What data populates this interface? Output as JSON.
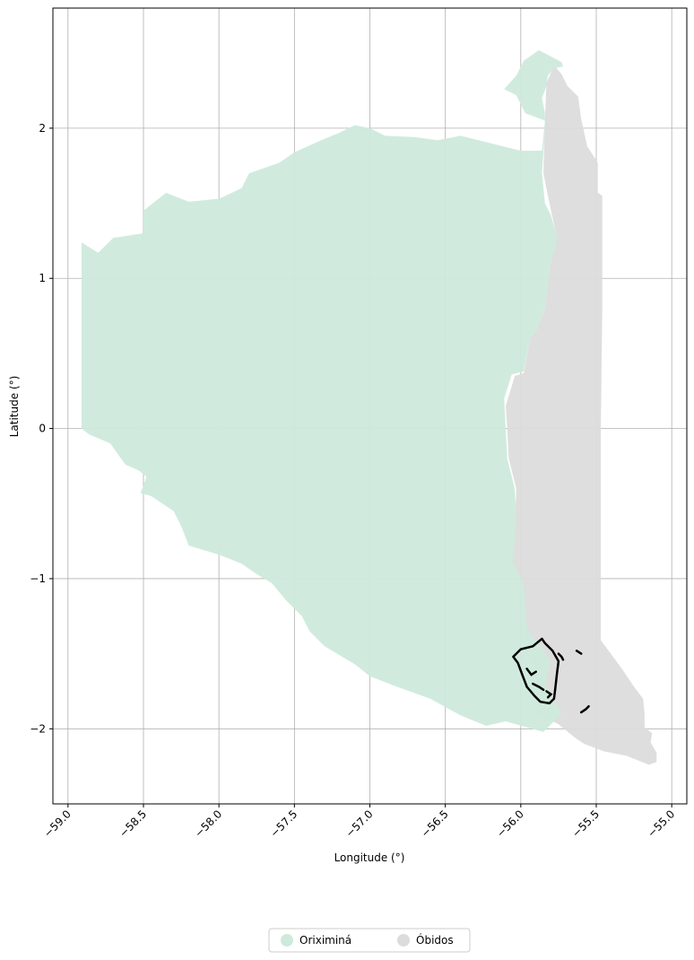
{
  "chart_data": {
    "type": "map",
    "xlabel": "Longitude (°)",
    "ylabel": "Latitude (°)",
    "xlim": [
      -59.1,
      -54.9
    ],
    "ylim": [
      -2.5,
      2.8
    ],
    "grid": true,
    "x_ticks": [
      {
        "value": -59.0,
        "label": "−59.0"
      },
      {
        "value": -58.5,
        "label": "−58.5"
      },
      {
        "value": -58.0,
        "label": "−58.0"
      },
      {
        "value": -57.5,
        "label": "−57.5"
      },
      {
        "value": -57.0,
        "label": "−57.0"
      },
      {
        "value": -56.5,
        "label": "−56.5"
      },
      {
        "value": -56.0,
        "label": "−56.0"
      },
      {
        "value": -55.5,
        "label": "−55.5"
      },
      {
        "value": -55.0,
        "label": "−55.0"
      }
    ],
    "y_ticks": [
      {
        "value": 2,
        "label": "2"
      },
      {
        "value": 1,
        "label": "1"
      },
      {
        "value": 0,
        "label": "0"
      },
      {
        "value": -1,
        "label": "−1"
      },
      {
        "value": -2,
        "label": "−2"
      }
    ],
    "legend_position": "bottom-center",
    "legend": [
      {
        "label": "Oriximiná",
        "color": "#cdeadc"
      },
      {
        "label": "Óbidos",
        "color": "#dcdcdc"
      }
    ],
    "regions": [
      {
        "name": "Óbidos",
        "color": "#dcdcdc",
        "coords": [
          [
            -55.73,
            2.36
          ],
          [
            -55.69,
            2.28
          ],
          [
            -55.62,
            2.21
          ],
          [
            -55.6,
            2.06
          ],
          [
            -55.56,
            1.88
          ],
          [
            -55.49,
            1.77
          ],
          [
            -55.49,
            1.57
          ],
          [
            -55.46,
            1.55
          ],
          [
            -55.46,
            0.8
          ],
          [
            -55.47,
            0.0
          ],
          [
            -55.47,
            -1.41
          ],
          [
            -55.33,
            -1.6
          ],
          [
            -55.25,
            -1.72
          ],
          [
            -55.19,
            -1.8
          ],
          [
            -55.18,
            -1.9
          ],
          [
            -55.18,
            -1.99
          ],
          [
            -55.13,
            -2.03
          ],
          [
            -55.14,
            -2.09
          ],
          [
            -55.1,
            -2.16
          ],
          [
            -55.1,
            -2.22
          ],
          [
            -55.15,
            -2.24
          ],
          [
            -55.3,
            -2.18
          ],
          [
            -55.45,
            -2.15
          ],
          [
            -55.58,
            -2.1
          ],
          [
            -55.64,
            -2.06
          ],
          [
            -55.75,
            -1.97
          ],
          [
            -55.88,
            -1.9
          ],
          [
            -55.92,
            -1.84
          ],
          [
            -55.88,
            -1.63
          ],
          [
            -55.97,
            -1.49
          ],
          [
            -55.97,
            -1.27
          ],
          [
            -56.0,
            -1.0
          ],
          [
            -56.06,
            -0.9
          ],
          [
            -56.04,
            -0.69
          ],
          [
            -56.03,
            -0.4
          ],
          [
            -56.08,
            -0.2
          ],
          [
            -56.09,
            0.0
          ],
          [
            -56.1,
            0.15
          ],
          [
            -56.04,
            0.35
          ],
          [
            -55.98,
            0.37
          ],
          [
            -55.94,
            0.6
          ],
          [
            -55.9,
            0.65
          ],
          [
            -55.84,
            0.8
          ],
          [
            -55.82,
            1.0
          ],
          [
            -55.8,
            1.12
          ],
          [
            -55.76,
            1.27
          ],
          [
            -55.81,
            1.5
          ],
          [
            -55.85,
            1.7
          ],
          [
            -55.84,
            2.07
          ],
          [
            -55.83,
            2.3
          ],
          [
            -55.78,
            2.42
          ]
        ]
      },
      {
        "name": "Oriximiná",
        "color": "#cdeadc",
        "coords": [
          [
            -58.91,
            0.0
          ],
          [
            -58.86,
            -0.04
          ],
          [
            -58.72,
            -0.1
          ],
          [
            -58.62,
            -0.24
          ],
          [
            -58.53,
            -0.28
          ],
          [
            -58.48,
            -0.32
          ],
          [
            -58.5,
            -0.38
          ],
          [
            -58.52,
            -0.43
          ],
          [
            -58.45,
            -0.45
          ],
          [
            -58.3,
            -0.55
          ],
          [
            -58.25,
            -0.65
          ],
          [
            -58.2,
            -0.78
          ],
          [
            -58.0,
            -0.84
          ],
          [
            -57.85,
            -0.9
          ],
          [
            -57.75,
            -0.97
          ],
          [
            -57.65,
            -1.03
          ],
          [
            -57.55,
            -1.15
          ],
          [
            -57.45,
            -1.25
          ],
          [
            -57.4,
            -1.35
          ],
          [
            -57.3,
            -1.45
          ],
          [
            -57.1,
            -1.57
          ],
          [
            -57.0,
            -1.65
          ],
          [
            -56.82,
            -1.72
          ],
          [
            -56.6,
            -1.8
          ],
          [
            -56.4,
            -1.91
          ],
          [
            -56.23,
            -1.98
          ],
          [
            -56.1,
            -1.95
          ],
          [
            -55.85,
            -2.02
          ],
          [
            -55.73,
            -1.9
          ],
          [
            -55.84,
            -1.7
          ],
          [
            -55.8,
            -1.55
          ],
          [
            -55.96,
            -1.33
          ],
          [
            -55.98,
            -1.03
          ],
          [
            -56.05,
            -0.9
          ],
          [
            -56.03,
            -0.6
          ],
          [
            -56.04,
            -0.4
          ],
          [
            -56.09,
            -0.2
          ],
          [
            -56.1,
            0.0
          ],
          [
            -56.11,
            0.2
          ],
          [
            -56.06,
            0.36
          ],
          [
            -55.98,
            0.38
          ],
          [
            -55.94,
            0.6
          ],
          [
            -55.9,
            0.65
          ],
          [
            -55.84,
            0.8
          ],
          [
            -55.82,
            1.0
          ],
          [
            -55.8,
            1.12
          ],
          [
            -55.77,
            1.2
          ],
          [
            -55.76,
            1.28
          ],
          [
            -55.8,
            1.42
          ],
          [
            -55.84,
            1.5
          ],
          [
            -55.86,
            1.7
          ],
          [
            -55.84,
            2.0
          ],
          [
            -55.84,
            2.1
          ],
          [
            -55.86,
            2.2
          ],
          [
            -55.83,
            2.28
          ],
          [
            -55.82,
            2.35
          ],
          [
            -55.78,
            2.4
          ],
          [
            -55.72,
            2.41
          ],
          [
            -55.73,
            2.44
          ],
          [
            -55.88,
            2.52
          ],
          [
            -55.98,
            2.45
          ],
          [
            -56.03,
            2.35
          ],
          [
            -56.11,
            2.26
          ],
          [
            -56.03,
            2.22
          ],
          [
            -55.97,
            2.1
          ],
          [
            -55.84,
            2.05
          ],
          [
            -55.86,
            1.85
          ],
          [
            -56.0,
            1.85
          ],
          [
            -56.2,
            1.9
          ],
          [
            -56.4,
            1.95
          ],
          [
            -56.55,
            1.92
          ],
          [
            -56.7,
            1.94
          ],
          [
            -56.9,
            1.95
          ],
          [
            -57.0,
            2.0
          ],
          [
            -57.1,
            2.02
          ],
          [
            -57.2,
            1.97
          ],
          [
            -57.3,
            1.93
          ],
          [
            -57.5,
            1.84
          ],
          [
            -57.6,
            1.77
          ],
          [
            -57.8,
            1.7
          ],
          [
            -57.85,
            1.6
          ],
          [
            -58.0,
            1.53
          ],
          [
            -58.2,
            1.51
          ],
          [
            -58.35,
            1.57
          ],
          [
            -58.5,
            1.45
          ],
          [
            -58.5,
            1.3
          ],
          [
            -58.7,
            1.27
          ],
          [
            -58.8,
            1.17
          ],
          [
            -58.91,
            1.24
          ]
        ]
      }
    ],
    "reserve_outline": {
      "name": "boundary-outline",
      "color": "#000000",
      "coords": [
        [
          -55.86,
          -1.4
        ],
        [
          -55.92,
          -1.45
        ],
        [
          -56.0,
          -1.47
        ],
        [
          -56.05,
          -1.52
        ],
        [
          -56.02,
          -1.56
        ],
        [
          -55.99,
          -1.64
        ],
        [
          -55.96,
          -1.72
        ],
        [
          -55.91,
          -1.78
        ],
        [
          -55.87,
          -1.82
        ],
        [
          -55.81,
          -1.83
        ],
        [
          -55.78,
          -1.8
        ],
        [
          -55.77,
          -1.72
        ],
        [
          -55.76,
          -1.63
        ],
        [
          -55.75,
          -1.55
        ],
        [
          -55.79,
          -1.48
        ],
        [
          -55.84,
          -1.43
        ]
      ],
      "fragments": [
        [
          [
            -55.96,
            -1.6
          ],
          [
            -55.93,
            -1.64
          ],
          [
            -55.9,
            -1.62
          ]
        ],
        [
          [
            -55.92,
            -1.7
          ],
          [
            -55.88,
            -1.72
          ],
          [
            -55.85,
            -1.74
          ]
        ],
        [
          [
            -55.83,
            -1.75
          ],
          [
            -55.8,
            -1.77
          ],
          [
            -55.82,
            -1.79
          ]
        ],
        [
          [
            -55.75,
            -1.5
          ],
          [
            -55.73,
            -1.52
          ],
          [
            -55.72,
            -1.54
          ]
        ],
        [
          [
            -55.6,
            -1.89
          ],
          [
            -55.57,
            -1.87
          ],
          [
            -55.55,
            -1.85
          ]
        ],
        [
          [
            -55.63,
            -1.48
          ],
          [
            -55.6,
            -1.5
          ]
        ]
      ]
    }
  }
}
